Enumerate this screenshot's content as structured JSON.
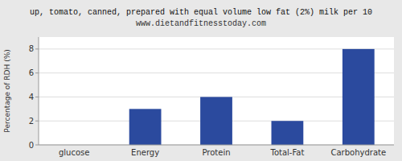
{
  "chart_data": {
    "type": "bar",
    "title": "up, tomato, canned, prepared with equal volume low fat (2%) milk per 10",
    "subtitle": "www.dietandfitnesstoday.com",
    "ylabel": "Percentage of RDH (%)",
    "categories": [
      "glucose",
      "Energy",
      "Protein",
      "Total-Fat",
      "Carbohydrate"
    ],
    "values": [
      0,
      3,
      4,
      2,
      8
    ],
    "color": "#2b4a9e",
    "ylim": [
      0,
      9
    ],
    "yticks": [
      0,
      2,
      4,
      6,
      8
    ],
    "grid": true
  }
}
